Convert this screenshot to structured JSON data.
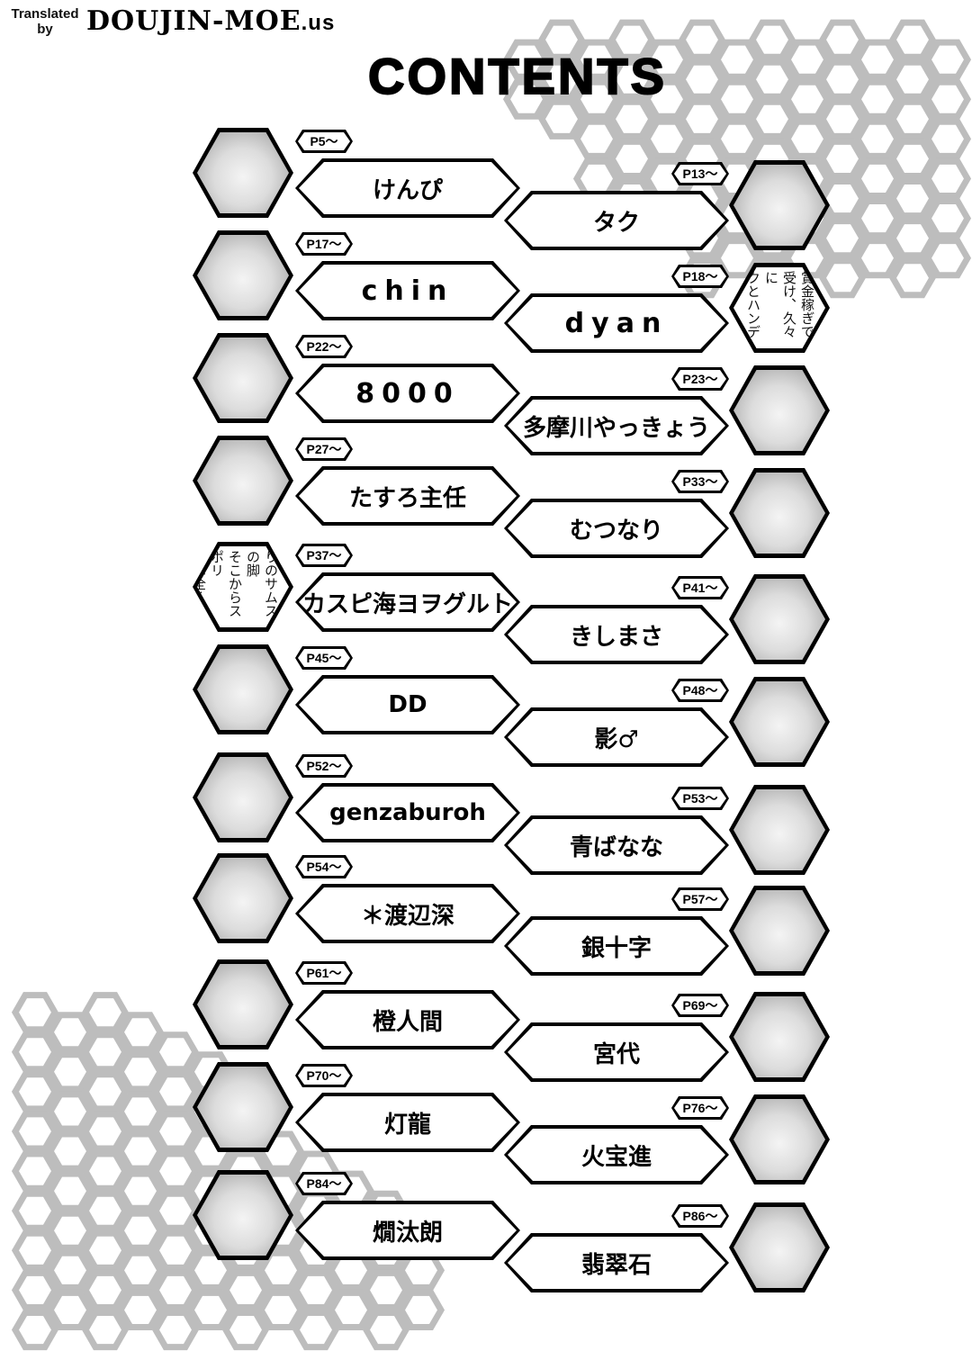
{
  "credit": {
    "translated_by": "Translated by",
    "site": "DOUJIN-MOE",
    "site_tld": ".us"
  },
  "title": "CONTENTS",
  "entries": [
    {
      "side": "left",
      "page": "P5～",
      "name": "けんぴ"
    },
    {
      "side": "right",
      "page": "P13～",
      "name": "タク"
    },
    {
      "side": "left",
      "page": "P17～",
      "name": "chin",
      "latin": true
    },
    {
      "side": "right",
      "page": "P18～",
      "name": "dyan",
      "latin": true,
      "face_text": [
        "賞金稼ぎで",
        "受け、久々に",
        "クとハンデ"
      ]
    },
    {
      "side": "left",
      "page": "P22～",
      "name": "8000",
      "latin": true
    },
    {
      "side": "right",
      "page": "P23～",
      "name": "多摩川やっきょう"
    },
    {
      "side": "left",
      "page": "P27～",
      "name": "たすろ主任"
    },
    {
      "side": "right",
      "page": "P33～",
      "name": "むつなり"
    },
    {
      "side": "left",
      "page": "P37～",
      "name": "カスピ海ヨヲグルト",
      "face_text": [
        "りのサムスの脚",
        "そこからスポリ",
        "ーは全く対応"
      ]
    },
    {
      "side": "right",
      "page": "P41～",
      "name": "きしまさ"
    },
    {
      "side": "left",
      "page": "P45～",
      "name": "DD"
    },
    {
      "side": "right",
      "page": "P48～",
      "name": "影♂"
    },
    {
      "side": "left",
      "page": "P52～",
      "name": "genzaburoh"
    },
    {
      "side": "right",
      "page": "P53～",
      "name": "青ばなな"
    },
    {
      "side": "left",
      "page": "P54～",
      "name": "＊渡辺深"
    },
    {
      "side": "right",
      "page": "P57～",
      "name": "銀十字"
    },
    {
      "side": "left",
      "page": "P61～",
      "name": "橙人間"
    },
    {
      "side": "right",
      "page": "P69～",
      "name": "宮代"
    },
    {
      "side": "left",
      "page": "P70～",
      "name": "灯龍"
    },
    {
      "side": "right",
      "page": "P76～",
      "name": "火宝進"
    },
    {
      "side": "left",
      "page": "P84～",
      "name": "燗汰朗"
    },
    {
      "side": "right",
      "page": "P86～",
      "name": "翡翠石"
    }
  ]
}
